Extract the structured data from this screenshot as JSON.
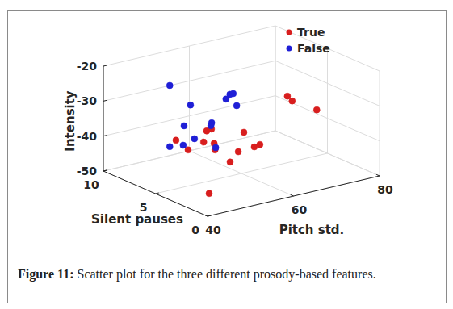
{
  "chart_data": {
    "type": "scatter",
    "xlabel": "Pitch std.",
    "ylabel": "Silent pauses",
    "zlabel": "Intensity",
    "xlim": [
      40,
      80
    ],
    "xticks": [
      40,
      60,
      80
    ],
    "ylim": [
      0,
      10
    ],
    "yticks": [
      0,
      5,
      10
    ],
    "zlim": [
      -50,
      -20
    ],
    "zticks": [
      -50,
      -40,
      -30,
      -20
    ],
    "grid": true,
    "legend": "northeast",
    "marker": "circle",
    "series": [
      {
        "name": "True",
        "color": "#d81e1e",
        "x": [
          61.0,
          62.1,
          65.4,
          53.3,
          50.6,
          49.5,
          48.8,
          48.8,
          47.6,
          47.2,
          49.0,
          52.0,
          50.1,
          53.3,
          54.6,
          42.8
        ],
        "y": [
          1,
          1,
          0,
          2,
          4,
          4,
          3,
          4,
          5,
          6,
          3,
          2,
          2,
          1,
          1,
          1
        ],
        "z": [
          -23.0,
          -24.7,
          -26.9,
          -32.4,
          -33.3,
          -33.5,
          -35.6,
          -36.5,
          -39.7,
          -38.1,
          -37.5,
          -37.6,
          -40.0,
          -35.3,
          -35.0,
          -45.6
        ]
      },
      {
        "name": "False",
        "color": "#1f1fd6",
        "x": [
          50.6,
          53.0,
          54.9,
          56.4,
          60.5,
          58.9,
          55.5,
          52.9,
          51.5,
          51.5,
          51.3,
          50.6,
          51.6
        ],
        "y": [
          8,
          7,
          4,
          5,
          6,
          5,
          6,
          5,
          7,
          6,
          7,
          8,
          4
        ],
        "z": [
          -26.0,
          -31.0,
          -24.6,
          -27.7,
          -28.6,
          -30.3,
          -35.5,
          -34.3,
          -36.5,
          -38.9,
          -42.0,
          -43.5,
          -38.9
        ]
      }
    ]
  },
  "caption": {
    "label": "Figure 11:",
    "text": "Scatter plot for the three different prosody-based features."
  }
}
